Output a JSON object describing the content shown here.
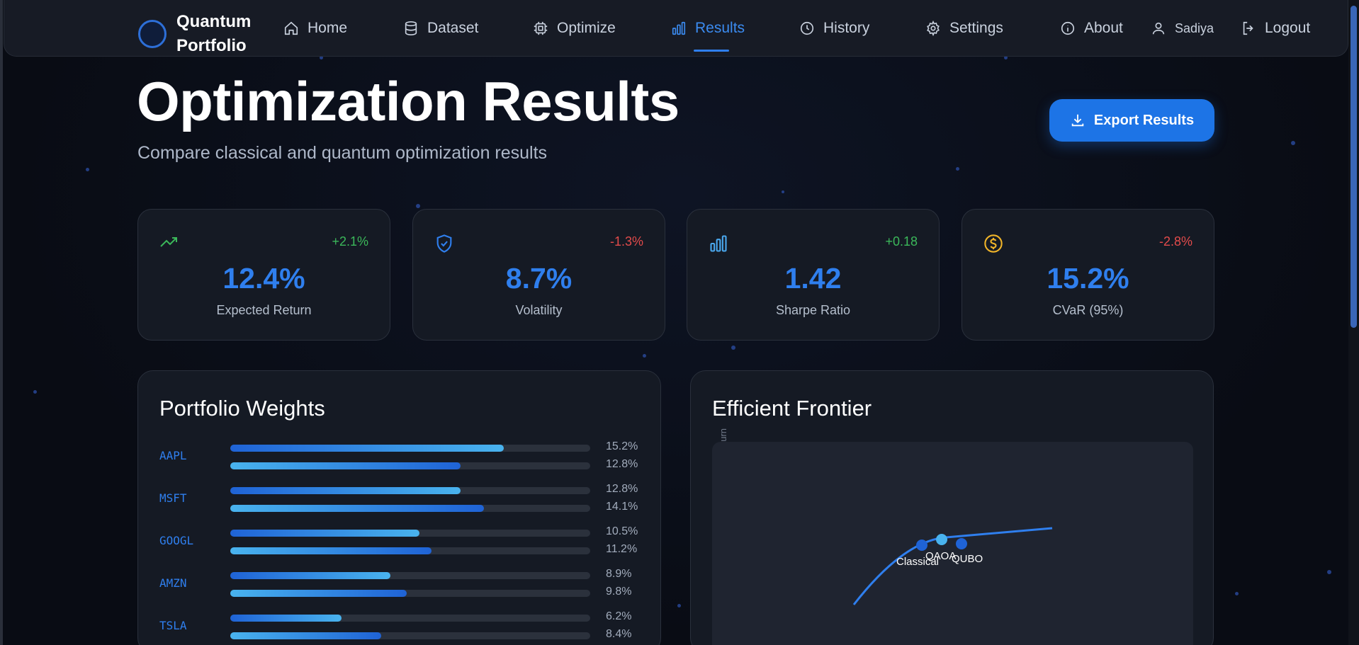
{
  "brand": {
    "name_line1": "Quantum",
    "name_line2": "Portfolio"
  },
  "nav": {
    "items": [
      {
        "label": "Home",
        "icon": "home-icon"
      },
      {
        "label": "Dataset",
        "icon": "database-icon"
      },
      {
        "label": "Optimize",
        "icon": "chip-icon"
      },
      {
        "label": "Results",
        "icon": "bar-chart-icon",
        "active": true
      },
      {
        "label": "History",
        "icon": "clock-icon"
      },
      {
        "label": "Settings",
        "icon": "gear-icon"
      },
      {
        "label": "About",
        "icon": "info-icon"
      }
    ],
    "user": "Sadiya",
    "logout": "Logout"
  },
  "header": {
    "title": "Optimization Results",
    "subtitle": "Compare classical and quantum optimization results",
    "export_label": "Export Results"
  },
  "metrics": [
    {
      "value": "12.4%",
      "label": "Expected Return",
      "change": "+2.1%",
      "trend": "positive",
      "icon": "trending-up-icon"
    },
    {
      "value": "8.7%",
      "label": "Volatility",
      "change": "-1.3%",
      "trend": "negative",
      "icon": "shield-check-icon"
    },
    {
      "value": "1.42",
      "label": "Sharpe Ratio",
      "change": "+0.18",
      "trend": "positive",
      "icon": "bar-chart-icon"
    },
    {
      "value": "15.2%",
      "label": "CVaR (95%)",
      "change": "-2.8%",
      "trend": "negative",
      "icon": "dollar-coin-icon"
    }
  ],
  "weights_panel": {
    "title": "Portfolio Weights",
    "rows": [
      {
        "ticker": "AAPL",
        "a_pct": "15.2%",
        "a": 15.2,
        "b_pct": "12.8%",
        "b": 12.8
      },
      {
        "ticker": "MSFT",
        "a_pct": "12.8%",
        "a": 12.8,
        "b_pct": "14.1%",
        "b": 14.1
      },
      {
        "ticker": "GOOGL",
        "a_pct": "10.5%",
        "a": 10.5,
        "b_pct": "11.2%",
        "b": 11.2
      },
      {
        "ticker": "AMZN",
        "a_pct": "8.9%",
        "a": 8.9,
        "b_pct": "9.8%",
        "b": 9.8
      },
      {
        "ticker": "TSLA",
        "a_pct": "6.2%",
        "a": 6.2,
        "b_pct": "8.4%",
        "b": 8.4
      }
    ],
    "bar_scale_max": 20
  },
  "frontier_panel": {
    "title": "Efficient Frontier",
    "y_label": "Return",
    "points": [
      {
        "label": "Classical"
      },
      {
        "label": "QAOA"
      },
      {
        "label": "QUBO"
      }
    ]
  },
  "colors": {
    "accent": "#2f7fee",
    "positive": "#3bb85a",
    "negative": "#e34b4b",
    "background": "#0a0e17",
    "card": "#151a24"
  }
}
